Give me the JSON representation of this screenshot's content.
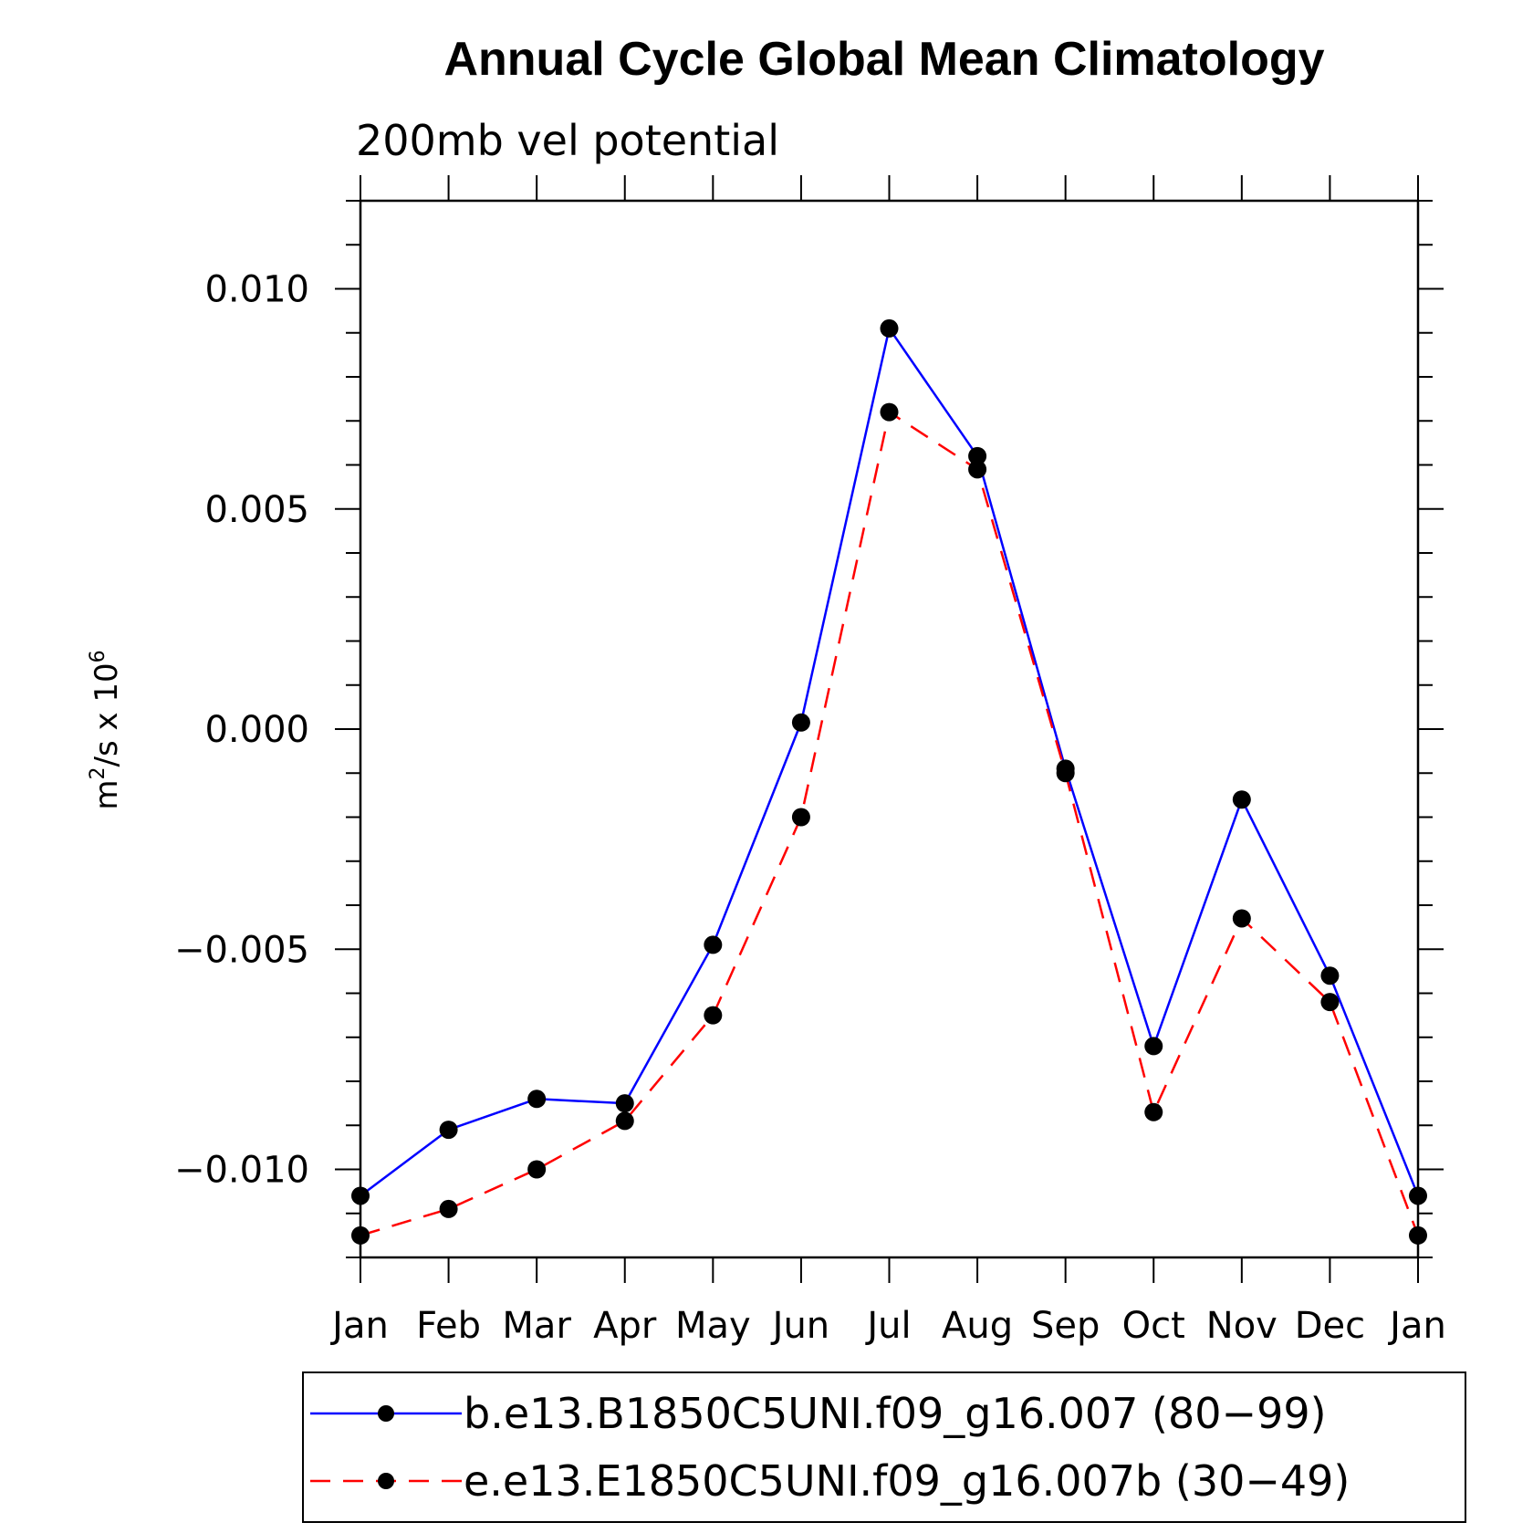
{
  "chart_data": {
    "type": "line",
    "title": "Annual Cycle Global Mean Climatology",
    "subtitle": "200mb vel potential",
    "ylabel_base": "m",
    "ylabel_sup1": "2",
    "ylabel_mid": "/s x 10",
    "ylabel_sup2": "6",
    "xlabel": "",
    "categories": [
      "Jan",
      "Feb",
      "Mar",
      "Apr",
      "May",
      "Jun",
      "Jul",
      "Aug",
      "Sep",
      "Oct",
      "Nov",
      "Dec",
      "Jan"
    ],
    "ylim": [
      -0.012,
      0.012
    ],
    "yticks": [
      -0.01,
      -0.005,
      0.0,
      0.005,
      0.01
    ],
    "ytick_labels": [
      "−0.010",
      "−0.005",
      "0.000",
      "0.005",
      "0.010"
    ],
    "series": [
      {
        "name": "b.e13.B1850C5UNI.f09_g16.007 (80−99)",
        "color": "#0000ff",
        "dash": "solid",
        "values": [
          -0.0106,
          -0.0091,
          -0.0084,
          -0.0085,
          -0.0049,
          0.00015,
          0.0091,
          0.0062,
          -0.0009,
          -0.0072,
          -0.0016,
          -0.0056,
          -0.0106
        ]
      },
      {
        "name": "e.e13.E1850C5UNI.f09_g16.007b (30−49)",
        "color": "#ff0000",
        "dash": "dashed",
        "values": [
          -0.0115,
          -0.0109,
          -0.01,
          -0.0089,
          -0.0065,
          -0.002,
          0.0072,
          0.0059,
          -0.001,
          -0.0087,
          -0.0043,
          -0.0062,
          -0.0115
        ]
      }
    ],
    "legend_position": "bottom",
    "grid": false
  }
}
